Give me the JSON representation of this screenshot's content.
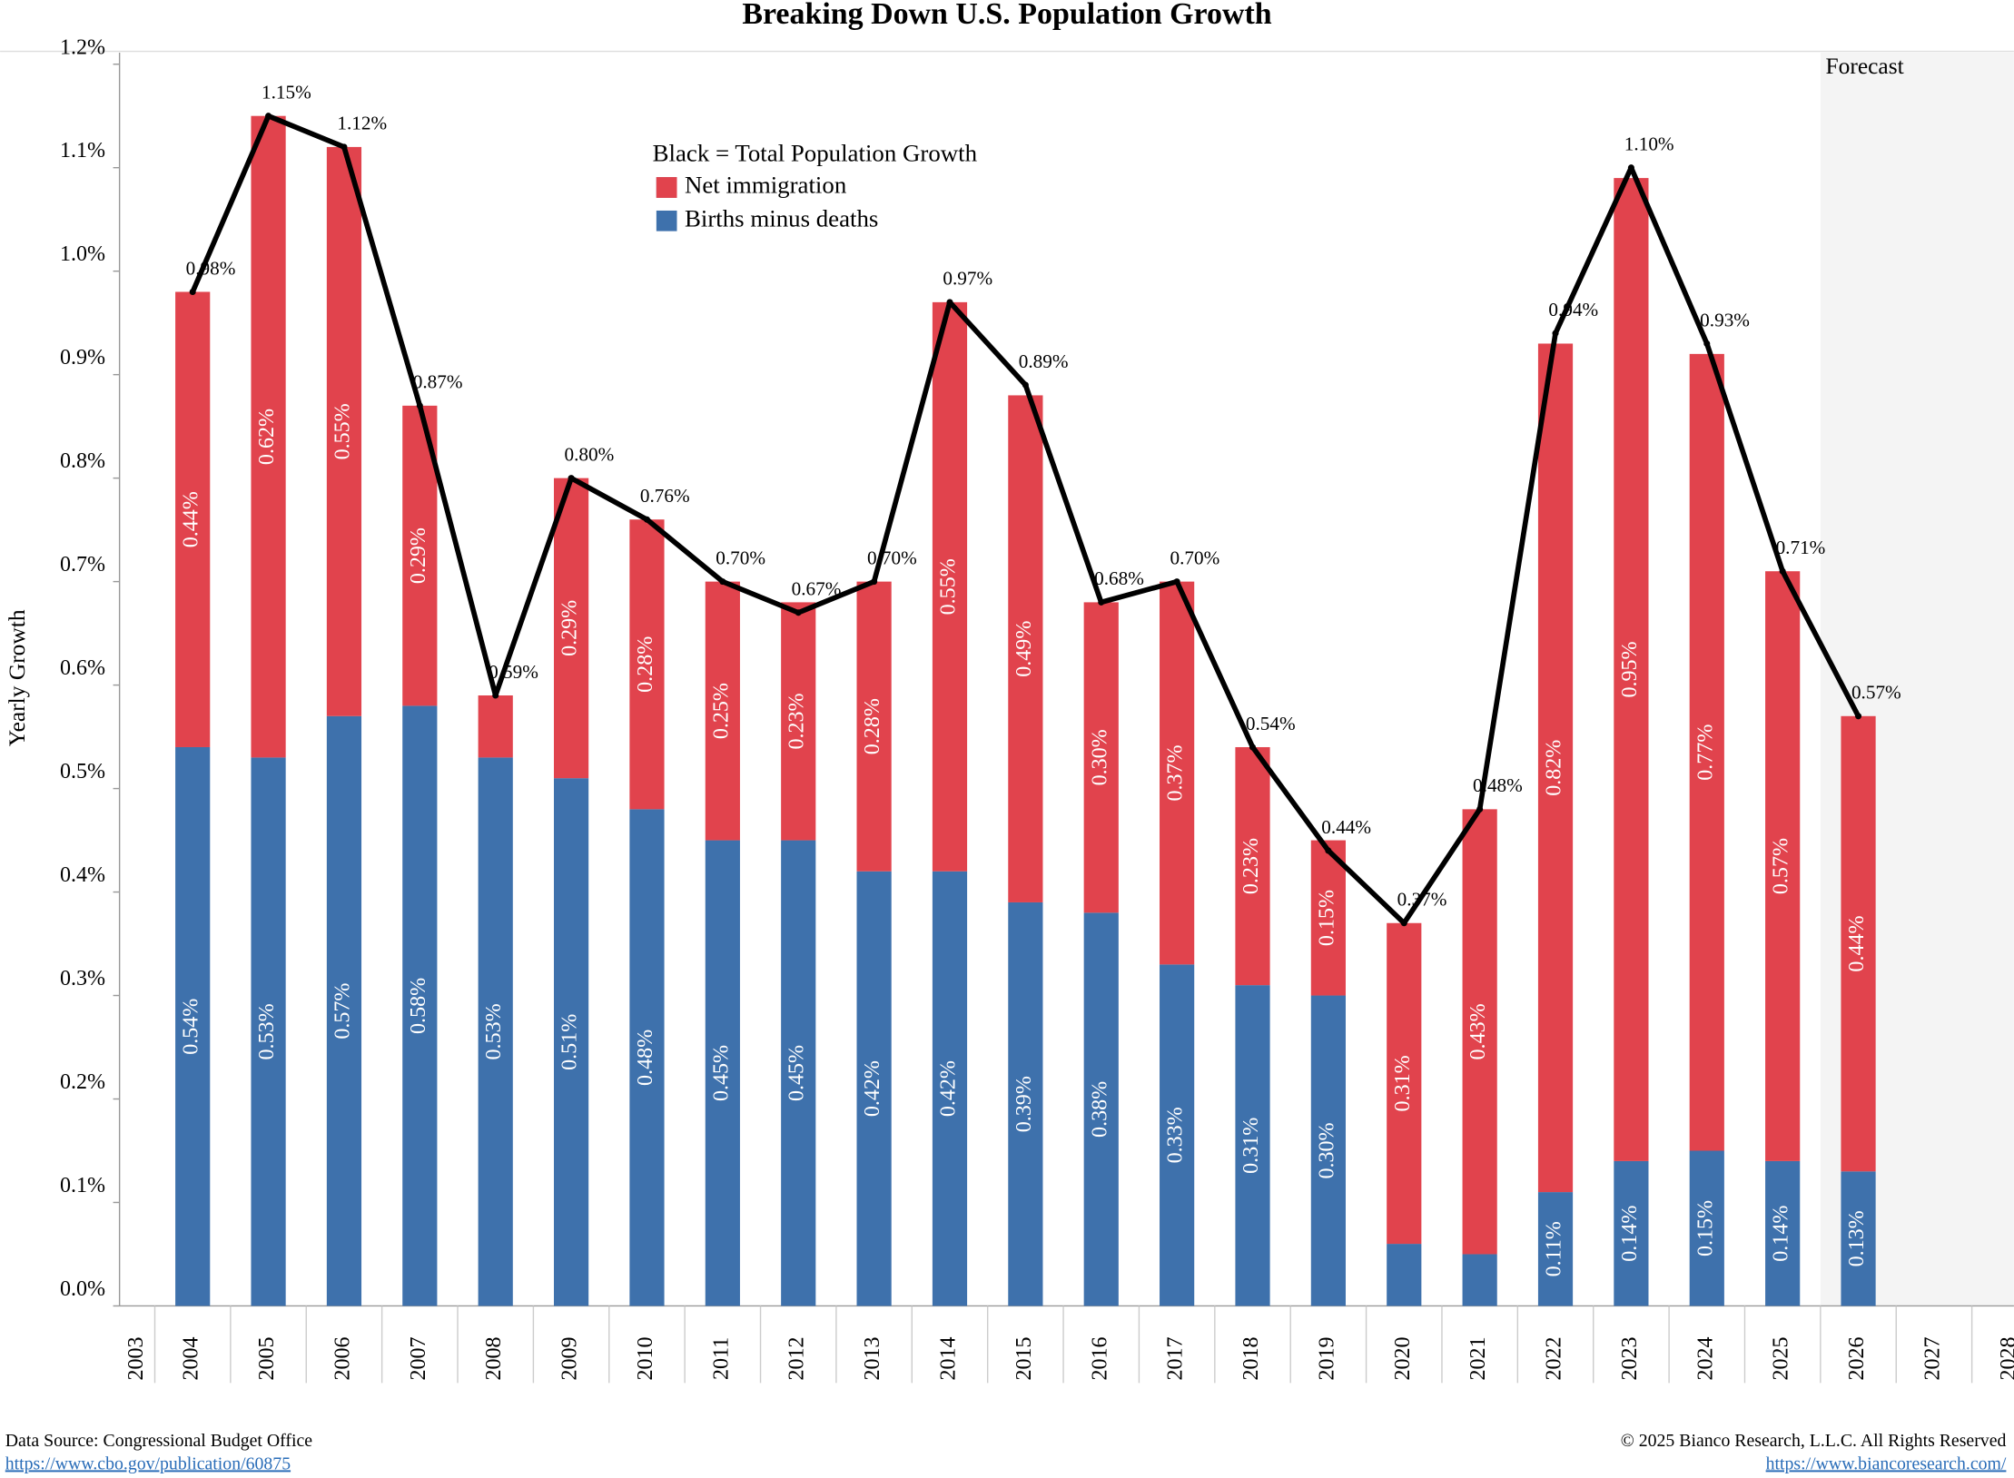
{
  "chart_data": {
    "type": "stacked_bar",
    "title": "Breaking Down U.S. Population Growth",
    "y_label": "Yearly Growth",
    "legend_title": "Black = Total Population Growth",
    "annotation": "Forecast",
    "source": "Data Source: Congressional Budget Office",
    "source_url": "https://www.cbo.gov/publication/60875",
    "copyright": "© 2025 Bianco Research, L.L.C. All Rights Reserved",
    "copyright_url": "https://www.biancoresearch.com/",
    "categories": [
      "2003",
      "2004",
      "2005",
      "2006",
      "2007",
      "2008",
      "2009",
      "2010",
      "2011",
      "2012",
      "2013",
      "2014",
      "2015",
      "2016",
      "2017",
      "2018",
      "2019",
      "2020",
      "2021",
      "2022",
      "2023",
      "2024",
      "2025",
      "2026",
      "2027",
      "2028"
    ],
    "series": [
      {
        "name": "Births minus deaths",
        "color": "#3e71ac",
        "values": [
          null,
          0.54,
          0.53,
          0.57,
          0.58,
          0.53,
          0.51,
          0.48,
          0.45,
          0.45,
          0.42,
          0.42,
          0.39,
          0.38,
          0.33,
          0.31,
          0.3,
          0.06,
          0.05,
          0.11,
          0.14,
          0.15,
          0.14,
          0.13,
          null,
          null
        ],
        "value_labels": [
          null,
          "0.54%",
          "0.53%",
          "0.57%",
          "0.58%",
          "0.53%",
          "0.51%",
          "0.48%",
          "0.45%",
          "0.45%",
          "0.42%",
          "0.42%",
          "0.39%",
          "0.38%",
          "0.33%",
          "0.31%",
          "0.30%",
          null,
          null,
          "0.11%",
          "0.14%",
          "0.15%",
          "0.14%",
          "0.13%",
          null,
          null
        ]
      },
      {
        "name": "Net immigration",
        "color": "#e1434d",
        "values": [
          null,
          0.44,
          0.62,
          0.55,
          0.29,
          0.06,
          0.29,
          0.28,
          0.25,
          0.23,
          0.28,
          0.55,
          0.49,
          0.3,
          0.37,
          0.23,
          0.15,
          0.31,
          0.43,
          0.82,
          0.95,
          0.77,
          0.57,
          0.44,
          null,
          null
        ],
        "value_labels": [
          null,
          "0.44%",
          "0.62%",
          "0.55%",
          "0.29%",
          null,
          "0.29%",
          "0.28%",
          "0.25%",
          "0.23%",
          "0.28%",
          "0.55%",
          "0.49%",
          "0.30%",
          "0.37%",
          "0.23%",
          "0.15%",
          "0.31%",
          "0.43%",
          "0.82%",
          "0.95%",
          "0.77%",
          "0.57%",
          "0.44%",
          null,
          null
        ]
      },
      {
        "name": "Total Population Growth",
        "type": "line",
        "color": "#000000",
        "values": [
          null,
          0.98,
          1.15,
          1.12,
          0.87,
          0.59,
          0.8,
          0.76,
          0.7,
          0.67,
          0.7,
          0.97,
          0.89,
          0.68,
          0.7,
          0.54,
          0.44,
          0.37,
          0.48,
          0.94,
          1.1,
          0.93,
          0.71,
          0.57,
          null,
          null
        ],
        "value_labels": [
          null,
          "0.98%",
          "1.15%",
          "1.12%",
          "0.87%",
          "0.59%",
          "0.80%",
          "0.76%",
          "0.70%",
          "0.67%",
          "0.70%",
          "0.97%",
          "0.89%",
          "0.68%",
          "0.70%",
          "0.54%",
          "0.44%",
          "0.37%",
          "0.48%",
          "0.94%",
          "1.10%",
          "0.93%",
          "0.71%",
          "0.57%",
          null,
          null
        ]
      }
    ],
    "ylim": [
      0,
      1.2
    ],
    "yticks": [
      {
        "value": 0,
        "label": "0.0%"
      },
      {
        "value": 0.1,
        "label": "0.1%"
      },
      {
        "value": 0.2,
        "label": "0.2%"
      },
      {
        "value": 0.3,
        "label": "0.3%"
      },
      {
        "value": 0.4,
        "label": "0.4%"
      },
      {
        "value": 0.5,
        "label": "0.5%"
      },
      {
        "value": 0.6,
        "label": "0.6%"
      },
      {
        "value": 0.7,
        "label": "0.7%"
      },
      {
        "value": 0.8,
        "label": "0.8%"
      },
      {
        "value": 0.9,
        "label": "0.9%"
      },
      {
        "value": 1.0,
        "label": "1.0%"
      },
      {
        "value": 1.1,
        "label": "1.1%"
      },
      {
        "value": 1.2,
        "label": "1.2%"
      }
    ],
    "forecast_from": "2026",
    "grid": false
  }
}
